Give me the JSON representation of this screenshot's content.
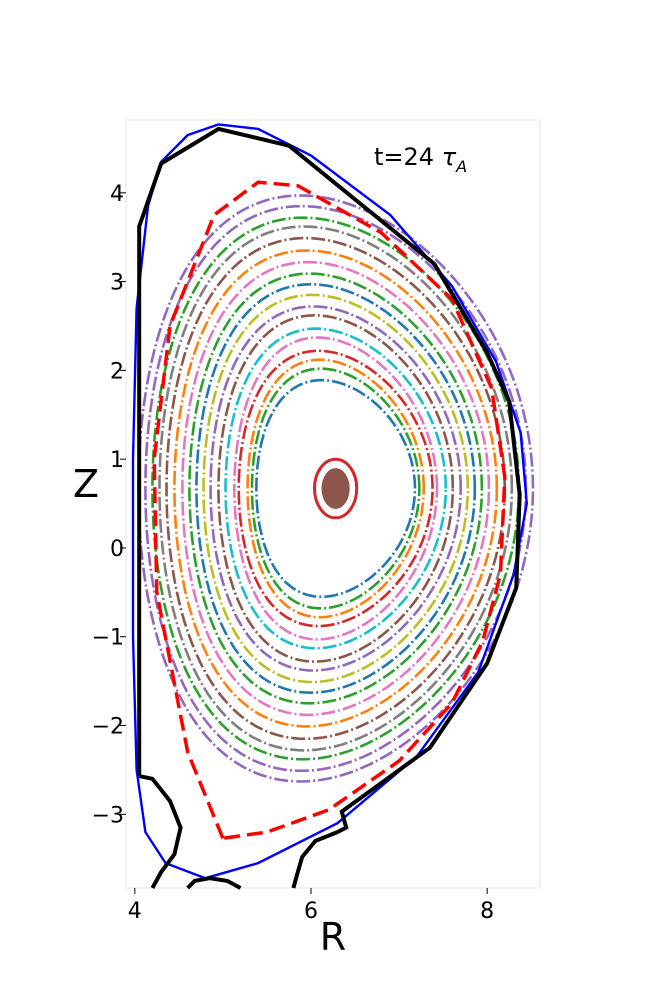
{
  "chart_data": {
    "type": "scatter",
    "title": "",
    "xlabel": "R",
    "ylabel": "Z",
    "xlim": [
      3.9,
      8.6
    ],
    "ylim": [
      -3.83,
      4.82
    ],
    "grid": false,
    "x_ticks": [
      {
        "value": 4,
        "label": "4"
      },
      {
        "value": 6,
        "label": "6"
      },
      {
        "value": 8,
        "label": "8"
      }
    ],
    "y_ticks": [
      {
        "value": 4,
        "label": "4"
      },
      {
        "value": 3,
        "label": "3"
      },
      {
        "value": 2,
        "label": "2"
      },
      {
        "value": 1,
        "label": "1"
      },
      {
        "value": 0,
        "label": "0"
      },
      {
        "value": -1,
        "label": "−1"
      },
      {
        "value": -2,
        "label": "−2"
      },
      {
        "value": -3,
        "label": "−3"
      }
    ],
    "annotation": {
      "text_main": "t=24 ",
      "text_tau": "τ",
      "text_sub": "A",
      "x": 6.7,
      "y": 4.42
    },
    "magnetic_axis": {
      "r": 6.28,
      "z": 0.67
    },
    "boundary": {
      "color": "#0000ff",
      "points": [
        [
          4.95,
          4.77
        ],
        [
          4.6,
          4.65
        ],
        [
          4.3,
          4.35
        ],
        [
          4.15,
          3.85
        ],
        [
          4.02,
          2.7
        ],
        [
          3.98,
          1.0
        ],
        [
          3.98,
          -1.0
        ],
        [
          4.02,
          -2.5
        ],
        [
          4.12,
          -3.2
        ],
        [
          4.35,
          -3.55
        ],
        [
          4.8,
          -3.72
        ],
        [
          5.4,
          -3.55
        ],
        [
          6.3,
          -3.1
        ],
        [
          7.2,
          -2.35
        ],
        [
          7.9,
          -1.4
        ],
        [
          8.3,
          -0.3
        ],
        [
          8.45,
          0.5
        ],
        [
          8.38,
          1.3
        ],
        [
          8.1,
          2.1
        ],
        [
          7.6,
          2.95
        ],
        [
          6.9,
          3.75
        ],
        [
          6.0,
          4.42
        ],
        [
          5.4,
          4.72
        ],
        [
          4.95,
          4.77
        ]
      ]
    },
    "wall": {
      "color": "#000000",
      "points": [
        [
          4.05,
          -2.57
        ],
        [
          4.05,
          3.62
        ],
        [
          4.3,
          4.33
        ],
        [
          4.95,
          4.72
        ],
        [
          5.75,
          4.53
        ],
        [
          7.4,
          3.2
        ],
        [
          8.0,
          2.2
        ],
        [
          8.25,
          1.65
        ],
        [
          8.37,
          0.6
        ],
        [
          8.33,
          -0.45
        ],
        [
          8.0,
          -1.3
        ],
        [
          7.35,
          -2.25
        ],
        [
          6.35,
          -2.97
        ],
        [
          6.4,
          -3.15
        ],
        [
          6.3,
          -3.2
        ]
      ]
    },
    "wall_extra": [
      {
        "color": "#000000",
        "points": [
          [
            4.05,
            -2.57
          ],
          [
            4.2,
            -2.6
          ],
          [
            4.4,
            -2.85
          ],
          [
            4.52,
            -3.15
          ],
          [
            4.45,
            -3.45
          ],
          [
            4.3,
            -3.65
          ],
          [
            4.2,
            -3.83
          ]
        ]
      },
      {
        "color": "#000000",
        "points": [
          [
            6.3,
            -3.2
          ],
          [
            6.05,
            -3.3
          ],
          [
            5.9,
            -3.48
          ],
          [
            5.85,
            -3.65
          ],
          [
            5.8,
            -3.83
          ]
        ]
      },
      {
        "color": "#000000",
        "points": [
          [
            4.6,
            -3.83
          ],
          [
            4.68,
            -3.75
          ],
          [
            4.85,
            -3.72
          ],
          [
            5.05,
            -3.75
          ],
          [
            5.2,
            -3.83
          ]
        ]
      }
    ],
    "separatrix": {
      "color": "#ff0000",
      "points": [
        [
          5.0,
          -3.27
        ],
        [
          4.6,
          -2.3
        ],
        [
          4.25,
          -0.5
        ],
        [
          4.22,
          1.0
        ],
        [
          4.4,
          2.5
        ],
        [
          4.9,
          3.75
        ],
        [
          5.4,
          4.12
        ],
        [
          5.85,
          4.08
        ],
        [
          6.8,
          3.55
        ],
        [
          7.6,
          2.8
        ],
        [
          8.05,
          1.8
        ],
        [
          8.2,
          0.8
        ],
        [
          8.15,
          -0.3
        ],
        [
          7.95,
          -1.05
        ],
        [
          7.6,
          -1.75
        ],
        [
          7.0,
          -2.4
        ],
        [
          6.2,
          -2.95
        ],
        [
          5.5,
          -3.2
        ],
        [
          5.0,
          -3.27
        ]
      ]
    },
    "series": [
      {
        "color": "#1f77b4",
        "a": 0.9,
        "b": 1.22
      },
      {
        "color": "#2ca02c",
        "a": 0.95,
        "b": 1.35
      },
      {
        "color": "#ff7f0e",
        "a": 1.0,
        "b": 1.45
      },
      {
        "color": "#d62728",
        "a": 1.1,
        "b": 1.55
      },
      {
        "color": "#e377c2",
        "a": 1.15,
        "b": 1.7
      },
      {
        "color": "#17becf",
        "a": 1.25,
        "b": 1.8
      },
      {
        "color": "#8c564b",
        "a": 1.33,
        "b": 1.95
      },
      {
        "color": "#9467bd",
        "a": 1.42,
        "b": 2.05
      },
      {
        "color": "#bcbd22",
        "a": 1.5,
        "b": 2.18
      },
      {
        "color": "#1f77b4",
        "a": 1.58,
        "b": 2.3
      },
      {
        "color": "#2ca02c",
        "a": 1.66,
        "b": 2.42
      },
      {
        "color": "#e377c2",
        "a": 1.74,
        "b": 2.55
      },
      {
        "color": "#ff7f0e",
        "a": 1.83,
        "b": 2.68
      },
      {
        "color": "#8c564b",
        "a": 1.92,
        "b": 2.82
      },
      {
        "color": "#7f7f7f",
        "a": 2.0,
        "b": 2.95
      },
      {
        "color": "#2ca02c",
        "a": 2.08,
        "b": 3.05
      },
      {
        "color": "#9467bd",
        "a": 2.16,
        "b": 3.18
      },
      {
        "color": "#9467bd",
        "a": 2.24,
        "b": 3.3
      }
    ]
  }
}
